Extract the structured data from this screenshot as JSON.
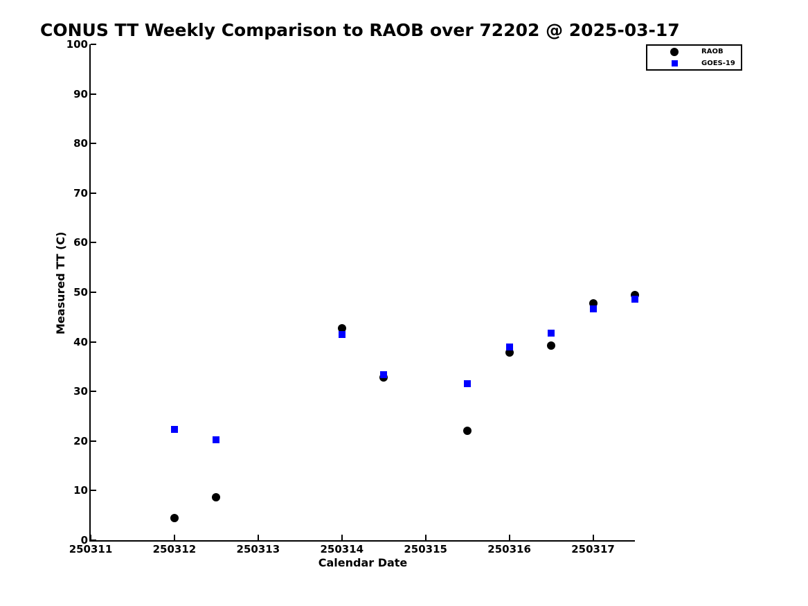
{
  "figure": {
    "background_color": "#ffffff",
    "text_color": "#000000"
  },
  "chart_data": {
    "type": "scatter",
    "title": "CONUS TT Weekly Comparison to RAOB over 72202 @ 2025-03-17",
    "xlabel": "Calendar Date",
    "ylabel": "Measured TT (C)",
    "xlim": [
      250311,
      250317.5
    ],
    "ylim": [
      0,
      100
    ],
    "x_ticks": [
      250311,
      250312,
      250313,
      250314,
      250315,
      250316,
      250317
    ],
    "y_ticks": [
      0,
      10,
      20,
      30,
      40,
      50,
      60,
      70,
      80,
      90,
      100
    ],
    "grid": false,
    "tick_direction": "in",
    "legend_position": "top-right-outside-plot",
    "series": [
      {
        "name": "RAOB",
        "marker": "circle",
        "color": "#000000",
        "x": [
          250312.0,
          250312.5,
          250314.0,
          250314.5,
          250315.5,
          250316.0,
          250316.5,
          250317.0,
          250317.5
        ],
        "y": [
          4.5,
          8.7,
          42.8,
          32.8,
          22.1,
          37.8,
          39.3,
          47.8,
          49.5
        ]
      },
      {
        "name": "GOES-19",
        "marker": "square",
        "color": "#0000ff",
        "x": [
          250312.0,
          250312.5,
          250314.0,
          250314.5,
          250315.5,
          250316.0,
          250316.5,
          250317.0,
          250317.5
        ],
        "y": [
          22.4,
          20.3,
          41.5,
          33.4,
          31.6,
          39.0,
          41.7,
          46.7,
          48.6
        ]
      }
    ]
  },
  "legend": {
    "items": [
      {
        "label": "RAOB",
        "marker": "circle",
        "color": "#000000"
      },
      {
        "label": "GOES-19",
        "marker": "square",
        "color": "#0000ff"
      }
    ]
  }
}
